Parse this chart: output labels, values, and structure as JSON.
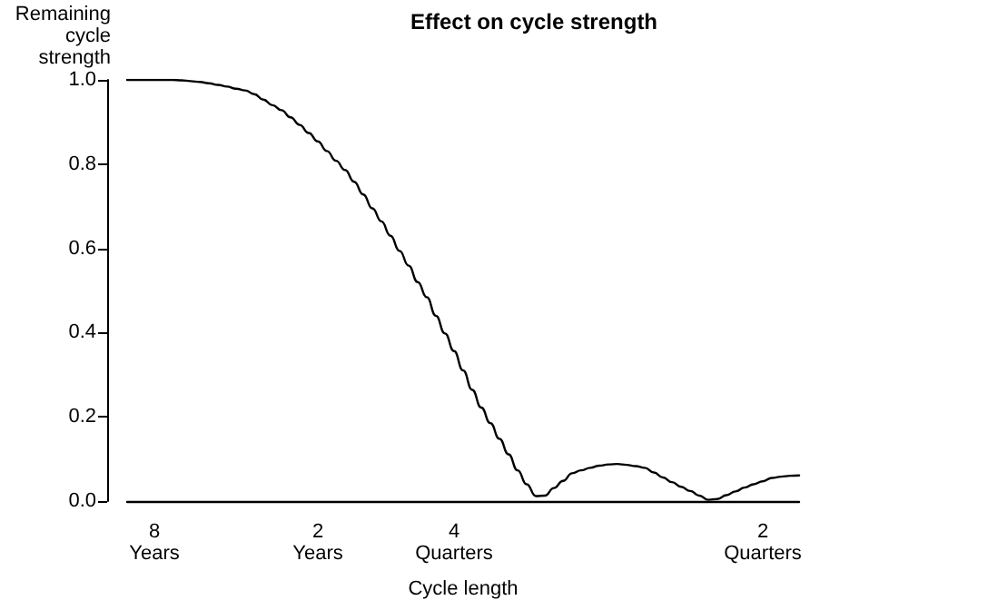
{
  "chart_data": {
    "type": "line",
    "title": "Effect on cycle strength",
    "xlabel": "Cycle length",
    "ylabel": "Remaining\ncycle\nstrength",
    "categories": [
      null,
      null,
      null,
      "8\nYears",
      null,
      null,
      null,
      null,
      null,
      null,
      null,
      null,
      null,
      null,
      null,
      null,
      null,
      null,
      null,
      null,
      null,
      "2\nYears",
      null,
      null,
      null,
      null,
      null,
      null,
      null,
      null,
      null,
      null,
      null,
      null,
      null,
      null,
      "4\nQuarters",
      null,
      null,
      null,
      null,
      null,
      null,
      null,
      null,
      null,
      null,
      null,
      null,
      null,
      null,
      null,
      null,
      null,
      null,
      null,
      null,
      null,
      null,
      null,
      null,
      null,
      null,
      null,
      null,
      null,
      null,
      null,
      null,
      null,
      "2\nQuarters",
      null,
      null,
      null,
      null
    ],
    "series": [
      {
        "color": "#000000",
        "values": [
          1.0,
          1.0,
          1.0,
          1.0,
          1.0,
          1.0,
          0.999,
          0.997,
          0.995,
          0.992,
          0.988,
          0.984,
          0.979,
          0.975,
          0.966,
          0.953,
          0.94,
          0.928,
          0.911,
          0.893,
          0.874,
          0.854,
          0.831,
          0.808,
          0.786,
          0.758,
          0.728,
          0.695,
          0.664,
          0.63,
          0.594,
          0.559,
          0.52,
          0.484,
          0.44,
          0.398,
          0.356,
          0.31,
          0.264,
          0.222,
          0.185,
          0.148,
          0.111,
          0.073,
          0.04,
          0.012,
          0.013,
          0.031,
          0.048,
          0.066,
          0.073,
          0.079,
          0.084,
          0.087,
          0.088,
          0.086,
          0.083,
          0.079,
          0.068,
          0.056,
          0.045,
          0.034,
          0.024,
          0.013,
          0.003,
          0.005,
          0.014,
          0.023,
          0.032,
          0.04,
          0.047,
          0.055,
          0.058,
          0.06,
          0.061
        ]
      }
    ],
    "ylim": [
      0,
      1.0
    ],
    "yticks": [
      {
        "value": 0,
        "label": "0.0"
      },
      {
        "value": 0.2,
        "label": "0.2"
      },
      {
        "value": 0.4,
        "label": "0.4"
      },
      {
        "value": 0.6,
        "label": "0.6"
      },
      {
        "value": 0.8,
        "label": "0.8"
      },
      {
        "value": 1.0,
        "label": "1.0"
      }
    ],
    "grid": false,
    "marker": "none",
    "line_style": "solid"
  }
}
